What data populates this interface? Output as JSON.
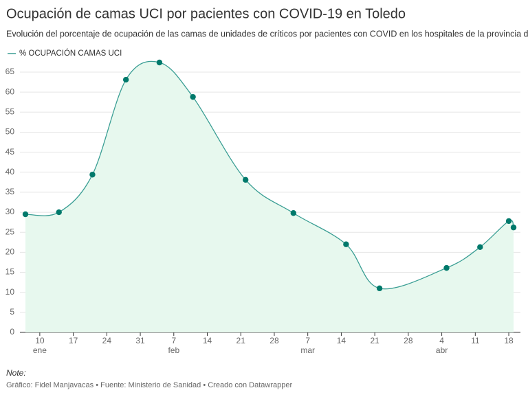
{
  "chart_data": {
    "type": "line",
    "title": "Ocupación de camas UCI por pacientes con COVID-19 en Toledo",
    "subtitle": "Evolución del porcentaje de ocupación de las camas de unidades de críticos por pacientes con COVID en los hospitales de la provincia de Toledo",
    "x": [
      "01-07",
      "01-14",
      "01-21",
      "01-28",
      "02-04",
      "02-11",
      "02-22",
      "03-04",
      "03-15",
      "03-22",
      "04-05",
      "04-12",
      "04-18",
      "04-19"
    ],
    "series": [
      {
        "name": "% OCUPACIÓN CAMAS UCI",
        "color": "#3a9e94",
        "marker_color": "#00796b",
        "area_color": "#e7f8ee",
        "values": [
          29.5,
          30.0,
          39.4,
          63.1,
          67.4,
          58.8,
          38.1,
          29.8,
          22.0,
          11.0,
          16.1,
          21.3,
          27.8,
          26.2
        ]
      }
    ],
    "xlim": [
      "01-07",
      "04-19"
    ],
    "xticks": [
      {
        "value": "01-10",
        "label": "10"
      },
      {
        "value": "01-17",
        "label": "17"
      },
      {
        "value": "01-24",
        "label": "24"
      },
      {
        "value": "01-31",
        "label": "31"
      },
      {
        "value": "02-07",
        "label": "7"
      },
      {
        "value": "02-14",
        "label": "14"
      },
      {
        "value": "02-21",
        "label": "21"
      },
      {
        "value": "02-28",
        "label": "28"
      },
      {
        "value": "03-07",
        "label": "7"
      },
      {
        "value": "03-14",
        "label": "14"
      },
      {
        "value": "03-21",
        "label": "21"
      },
      {
        "value": "03-28",
        "label": "28"
      },
      {
        "value": "04-04",
        "label": "4"
      },
      {
        "value": "04-11",
        "label": "11"
      },
      {
        "value": "04-18",
        "label": "18"
      }
    ],
    "x_month_labels": [
      {
        "value": "01-10",
        "label": "ene"
      },
      {
        "value": "02-07",
        "label": "feb"
      },
      {
        "value": "03-07",
        "label": "mar"
      },
      {
        "value": "04-04",
        "label": "abr"
      }
    ],
    "ylim": [
      0,
      65
    ],
    "yticks": [
      0,
      5,
      10,
      15,
      20,
      25,
      30,
      35,
      40,
      45,
      50,
      55,
      60,
      65
    ],
    "grid": true,
    "note_label": "Note:",
    "source": "Gráfico: Fidel Manjavacas • Fuente: Ministerio de Sanidad • Creado con Datawrapper"
  }
}
